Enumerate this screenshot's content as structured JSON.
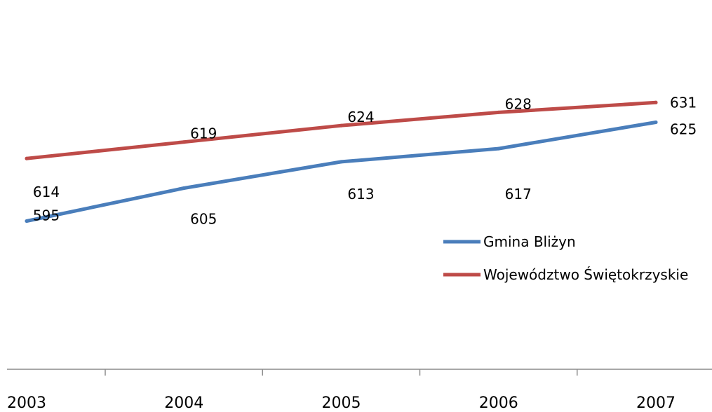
{
  "chart_data": {
    "type": "line",
    "title": "",
    "xlabel": "",
    "ylabel": "",
    "categories": [
      "2003",
      "2004",
      "2005",
      "2006",
      "2007"
    ],
    "ylim": [
      550,
      635
    ],
    "grid": false,
    "legend_placement": "right",
    "series": [
      {
        "name": "Gmina Bliżyn",
        "color": "#4a7ebb",
        "values": [
          595,
          605,
          613,
          617,
          625
        ],
        "labels": [
          "595",
          "605",
          "613",
          "617",
          "625"
        ]
      },
      {
        "name": "Województwo Świętokrzyskie",
        "color": "#be4b48",
        "values": [
          614,
          619,
          624,
          628,
          631
        ],
        "labels": [
          "614",
          "619",
          "624",
          "628",
          "631"
        ]
      }
    ]
  }
}
